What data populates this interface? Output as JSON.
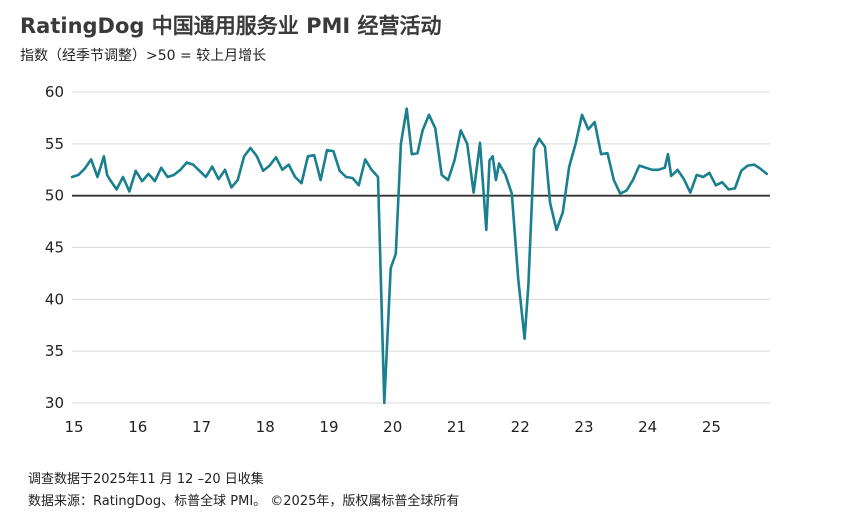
{
  "title": "RatingDog 中国通用服务业 PMI 经营活动",
  "subtitle": "指数（经季节调整）>50 = 较上月增长",
  "footer": {
    "survey_note": "调查数据于2025年11 月 12 –20 日收集",
    "source_note": "数据来源：RatingDog、标普全球 PMI。 ©2025年，版权属标普全球所有"
  },
  "chart_data": {
    "type": "line",
    "series_color": "#1a7f8e",
    "reference_line": 50,
    "ylim": [
      30,
      60
    ],
    "y_ticks": [
      "30",
      "35",
      "40",
      "45",
      "50",
      "55",
      "60"
    ],
    "y_tick_values": [
      30,
      35,
      40,
      45,
      50,
      55,
      60
    ],
    "xlim": [
      2015.0,
      2025.95
    ],
    "x_ticks": [
      "15",
      "16",
      "17",
      "18",
      "19",
      "20",
      "21",
      "22",
      "23",
      "24",
      "25"
    ],
    "x_tick_values": [
      2015,
      2016,
      2017,
      2018,
      2019,
      2020,
      2021,
      2022,
      2023,
      2024,
      2025
    ],
    "grid": "horizontal",
    "series": [
      {
        "x": [
          2015.0,
          2015.1,
          2015.2,
          2015.3,
          2015.4,
          2015.5,
          2015.55,
          2015.6,
          2015.7,
          2015.8,
          2015.9,
          2016.0,
          2016.1,
          2016.2,
          2016.3,
          2016.4,
          2016.5,
          2016.6,
          2016.7,
          2016.8,
          2016.9,
          2017.0,
          2017.1,
          2017.2,
          2017.3,
          2017.4,
          2017.5,
          2017.6,
          2017.7,
          2017.8,
          2017.9,
          2018.0,
          2018.1,
          2018.2,
          2018.3,
          2018.4,
          2018.5,
          2018.6,
          2018.7,
          2018.8,
          2018.9,
          2019.0,
          2019.1,
          2019.2,
          2019.3,
          2019.4,
          2019.5,
          2019.6,
          2019.7,
          2019.8,
          2019.9,
          2020.0,
          2020.08,
          2020.16,
          2020.25,
          2020.33,
          2020.42,
          2020.5,
          2020.6,
          2020.7,
          2020.8,
          2020.9,
          2021.0,
          2021.1,
          2021.2,
          2021.3,
          2021.4,
          2021.5,
          2021.55,
          2021.6,
          2021.65,
          2021.7,
          2021.8,
          2021.9,
          2022.0,
          2022.1,
          2022.16,
          2022.25,
          2022.33,
          2022.42,
          2022.5,
          2022.6,
          2022.7,
          2022.8,
          2022.9,
          2023.0,
          2023.1,
          2023.2,
          2023.3,
          2023.4,
          2023.5,
          2023.6,
          2023.7,
          2023.8,
          2023.9,
          2024.0,
          2024.1,
          2024.2,
          2024.3,
          2024.35,
          2024.4,
          2024.5,
          2024.6,
          2024.7,
          2024.8,
          2024.9,
          2025.0,
          2025.1,
          2025.2,
          2025.3,
          2025.4,
          2025.5,
          2025.6,
          2025.7,
          2025.8,
          2025.9
        ],
        "y": [
          51.8,
          52.0,
          52.6,
          53.5,
          51.8,
          53.8,
          52.0,
          51.5,
          50.6,
          51.8,
          50.4,
          52.4,
          51.4,
          52.1,
          51.4,
          52.7,
          51.8,
          52.0,
          52.5,
          53.2,
          53.0,
          52.4,
          51.8,
          52.8,
          51.6,
          52.5,
          50.8,
          51.5,
          53.8,
          54.6,
          53.8,
          52.4,
          52.9,
          53.7,
          52.5,
          53.0,
          51.8,
          51.2,
          53.8,
          53.9,
          51.5,
          54.4,
          54.3,
          52.4,
          51.8,
          51.7,
          51.0,
          53.5,
          52.5,
          51.8,
          30.0,
          43.0,
          44.4,
          55.0,
          58.4,
          54.0,
          54.1,
          56.3,
          57.8,
          56.5,
          52.0,
          51.5,
          53.4,
          56.3,
          55.0,
          50.3,
          55.1,
          46.7,
          53.4,
          53.8,
          51.5,
          53.1,
          52.0,
          50.2,
          42.0,
          36.2,
          41.4,
          54.5,
          55.5,
          54.7,
          49.3,
          46.7,
          48.4,
          52.8,
          55.0,
          57.8,
          56.4,
          57.1,
          54.0,
          54.1,
          51.5,
          50.2,
          50.5,
          51.5,
          52.9,
          52.7,
          52.5,
          52.5,
          52.7,
          54.0,
          51.9,
          52.5,
          51.6,
          50.3,
          52.0,
          51.8,
          52.2,
          51.0,
          51.3,
          50.6,
          50.7,
          52.4,
          52.9,
          53.0,
          52.6,
          52.1
        ]
      }
    ]
  }
}
